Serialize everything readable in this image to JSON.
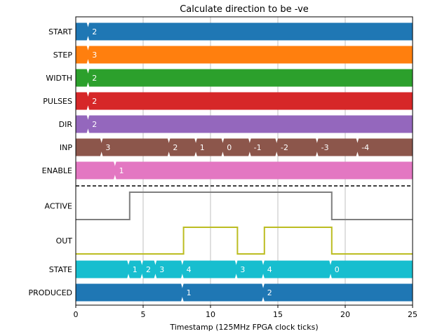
{
  "chart_data": {
    "type": "timing",
    "title": "Calculate direction to be -ve",
    "xlabel": "Timestamp (125MHz FPGA clock ticks)",
    "xlim": [
      0,
      25
    ],
    "xticks": [
      "0",
      "5",
      "10",
      "15",
      "20",
      "25"
    ],
    "grid": "vertical",
    "separator_after": "ENABLE",
    "bus_signals": [
      {
        "name": "START",
        "color": "#1f77b4",
        "segments": [
          {
            "start": 1,
            "label": "2"
          }
        ]
      },
      {
        "name": "STEP",
        "color": "#ff7f0e",
        "segments": [
          {
            "start": 1,
            "label": "3"
          }
        ]
      },
      {
        "name": "WIDTH",
        "color": "#2ca02c",
        "segments": [
          {
            "start": 1,
            "label": "2"
          }
        ]
      },
      {
        "name": "PULSES",
        "color": "#d62728",
        "segments": [
          {
            "start": 1,
            "label": "2"
          }
        ]
      },
      {
        "name": "DIR",
        "color": "#9467bd",
        "segments": [
          {
            "start": 1,
            "label": "2"
          }
        ]
      },
      {
        "name": "INP",
        "color": "#8c564b",
        "segments": [
          {
            "start": 2,
            "label": "3"
          },
          {
            "start": 7,
            "label": "2"
          },
          {
            "start": 9,
            "label": "1"
          },
          {
            "start": 11,
            "label": "0"
          },
          {
            "start": 13,
            "label": "-1"
          },
          {
            "start": 15,
            "label": "-2"
          },
          {
            "start": 18,
            "label": "-3"
          },
          {
            "start": 21,
            "label": "-4"
          }
        ]
      },
      {
        "name": "ENABLE",
        "color": "#e377c2",
        "segments": [
          {
            "start": 3,
            "label": "1"
          }
        ]
      }
    ],
    "bit_signals": [
      {
        "name": "ACTIVE",
        "color": "#7f7f7f",
        "initial": 0,
        "transitions": [
          [
            4,
            1
          ],
          [
            19,
            0
          ]
        ]
      },
      {
        "name": "OUT",
        "color": "#bcbd22",
        "initial": 0,
        "transitions": [
          [
            8,
            1
          ],
          [
            12,
            0
          ],
          [
            14,
            1
          ],
          [
            19,
            0
          ]
        ]
      }
    ],
    "bus_signals_after": [
      {
        "name": "STATE",
        "color": "#17becf",
        "segments": [
          {
            "start": 4,
            "label": "1"
          },
          {
            "start": 5,
            "label": "2"
          },
          {
            "start": 6,
            "label": "3"
          },
          {
            "start": 8,
            "label": "4"
          },
          {
            "start": 12,
            "label": "3"
          },
          {
            "start": 14,
            "label": "4"
          },
          {
            "start": 19,
            "label": "0"
          }
        ]
      },
      {
        "name": "PRODUCED",
        "color": "#1f77b4",
        "segments": [
          {
            "start": 8,
            "label": "1"
          },
          {
            "start": 14,
            "label": "2"
          }
        ]
      }
    ]
  }
}
